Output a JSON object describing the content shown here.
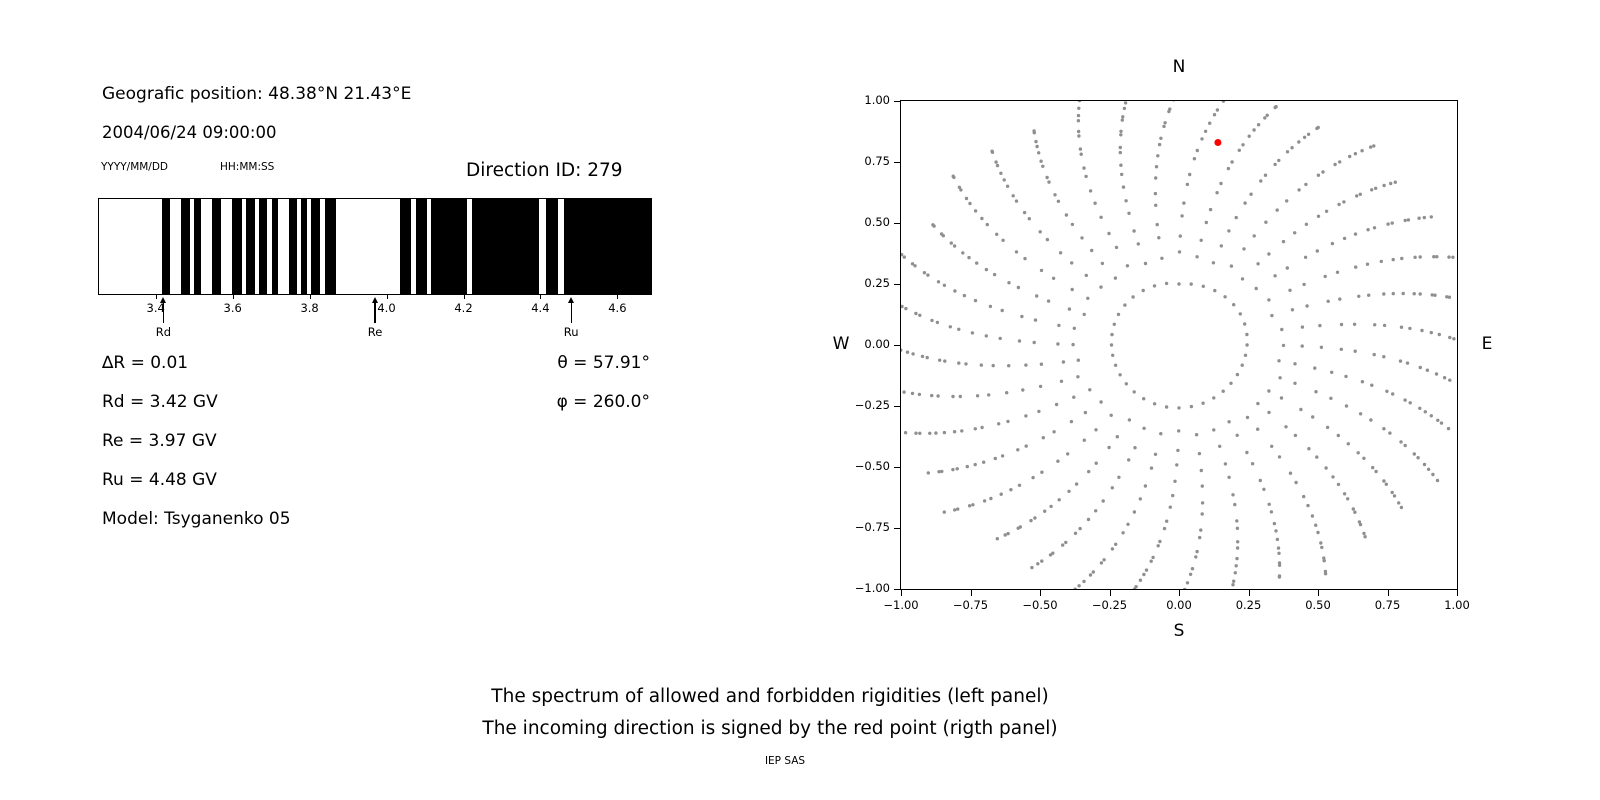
{
  "header": {
    "position": "Geografic position: 48.38°N 21.43°E",
    "datetime": "2004/06/24 09:00:00",
    "date_format": "YYYY/MM/DD",
    "time_format": "HH:MM:SS",
    "direction_id": "Direction ID: 279"
  },
  "stats": {
    "delta_r": "∆R = 0.01",
    "rd": "Rd = 3.42 GV",
    "re": "Re = 3.97 GV",
    "ru": "Ru = 4.48 GV",
    "model": "Model: Tsyganenko 05",
    "theta": "θ = 57.91°",
    "phi": "φ = 260.0°"
  },
  "caption": {
    "line1": "The spectrum of allowed and forbidden rigidities (left panel)",
    "line2": "The incoming direction is signed by the red point (rigth panel)",
    "credit": "IEP SAS"
  },
  "chart_data": [
    {
      "type": "bar",
      "name": "rigidity_spectrum",
      "description": "Barcode spectrum: black bands = forbidden rigidities, white = allowed rigidities",
      "x_range": [
        3.25,
        4.69
      ],
      "x_ticks": [
        3.4,
        3.6,
        3.8,
        4.0,
        4.2,
        4.4,
        4.6
      ],
      "x_tick_labels": [
        "3.4",
        "3.6",
        "3.8",
        "4.0",
        "4.2",
        "4.4",
        "4.6"
      ],
      "band_color": "#000000",
      "forbidden_bands_GV": [
        [
          3.415,
          3.435
        ],
        [
          3.463,
          3.487
        ],
        [
          3.497,
          3.517
        ],
        [
          3.545,
          3.567
        ],
        [
          3.598,
          3.623
        ],
        [
          3.633,
          3.657
        ],
        [
          3.667,
          3.687
        ],
        [
          3.7,
          3.717
        ],
        [
          3.745,
          3.767
        ],
        [
          3.777,
          3.793
        ],
        [
          3.803,
          3.827
        ],
        [
          3.84,
          3.868
        ],
        [
          4.035,
          4.065
        ],
        [
          4.077,
          4.105
        ],
        [
          4.115,
          4.21
        ],
        [
          4.222,
          4.398
        ],
        [
          4.415,
          4.447
        ],
        [
          4.462,
          4.69
        ]
      ],
      "markers": [
        {
          "label": "Rd",
          "value": 3.42
        },
        {
          "label": "Re",
          "value": 3.97
        },
        {
          "label": "Ru",
          "value": 4.48
        }
      ]
    },
    {
      "type": "scatter",
      "name": "incoming_directions",
      "grid": false,
      "xlim": [
        -1.0,
        1.0
      ],
      "ylim": [
        -1.0,
        1.0
      ],
      "x_ticks": [
        -1.0,
        -0.75,
        -0.5,
        -0.25,
        0.0,
        0.25,
        0.5,
        0.75,
        1.0
      ],
      "x_tick_labels": [
        "−1.00",
        "−0.75",
        "−0.50",
        "−0.25",
        "0.00",
        "0.25",
        "0.50",
        "0.75",
        "1.00"
      ],
      "y_ticks": [
        1.0,
        0.75,
        0.5,
        0.25,
        0.0,
        -0.25,
        -0.5,
        -0.75,
        -1.0
      ],
      "y_tick_labels": [
        "1.00",
        "0.75",
        "0.50",
        "0.25",
        "0.00",
        "−0.25",
        "−0.50",
        "−0.75",
        "−1.00"
      ],
      "compass": {
        "top": "N",
        "bottom": "S",
        "left": "W",
        "right": "E"
      },
      "grid_dots": {
        "pattern": "radial spokes of gray dots with an inner ring, density increasing outward",
        "n_spokes": 36,
        "azimuth_step_deg": 10,
        "radii": [
          0.25,
          0.37,
          0.44,
          0.51,
          0.575,
          0.635,
          0.69,
          0.74,
          0.785,
          0.825,
          0.86,
          0.895,
          0.925,
          0.955,
          0.98,
          1.005,
          1.03,
          1.05
        ],
        "curvature_deg": 10,
        "dot_color": "#8f8f8f"
      },
      "red_point": {
        "x": 0.14,
        "y": 0.83,
        "color": "#ff0000",
        "meaning": "incoming direction"
      }
    }
  ]
}
